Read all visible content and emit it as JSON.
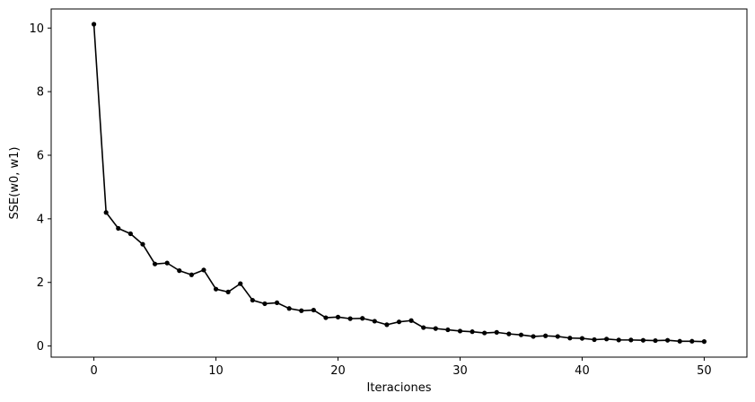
{
  "chart_data": {
    "type": "line",
    "xlabel": "Iteraciones",
    "ylabel": "SSE(w0, w1)",
    "xlim": [
      -3.5,
      53.5
    ],
    "ylim": [
      -0.35,
      10.6
    ],
    "xticks": [
      0,
      10,
      20,
      30,
      40,
      50
    ],
    "yticks": [
      0,
      2,
      4,
      6,
      8,
      10
    ],
    "grid": false,
    "line_color": "#000000",
    "marker": "circle",
    "x": [
      0,
      1,
      2,
      3,
      4,
      5,
      6,
      7,
      8,
      9,
      10,
      11,
      12,
      13,
      14,
      15,
      16,
      17,
      18,
      19,
      20,
      21,
      22,
      23,
      24,
      25,
      26,
      27,
      28,
      29,
      30,
      31,
      32,
      33,
      34,
      35,
      36,
      37,
      38,
      39,
      40,
      41,
      42,
      43,
      44,
      45,
      46,
      47,
      48,
      49,
      50
    ],
    "y": [
      10.12,
      4.2,
      3.7,
      3.53,
      3.2,
      2.58,
      2.61,
      2.37,
      2.24,
      2.39,
      1.79,
      1.7,
      1.96,
      1.44,
      1.33,
      1.36,
      1.18,
      1.11,
      1.13,
      0.89,
      0.91,
      0.86,
      0.87,
      0.78,
      0.67,
      0.76,
      0.8,
      0.58,
      0.55,
      0.51,
      0.47,
      0.45,
      0.41,
      0.43,
      0.38,
      0.35,
      0.3,
      0.32,
      0.3,
      0.25,
      0.24,
      0.2,
      0.22,
      0.19,
      0.19,
      0.18,
      0.17,
      0.18,
      0.15,
      0.15,
      0.14
    ]
  }
}
